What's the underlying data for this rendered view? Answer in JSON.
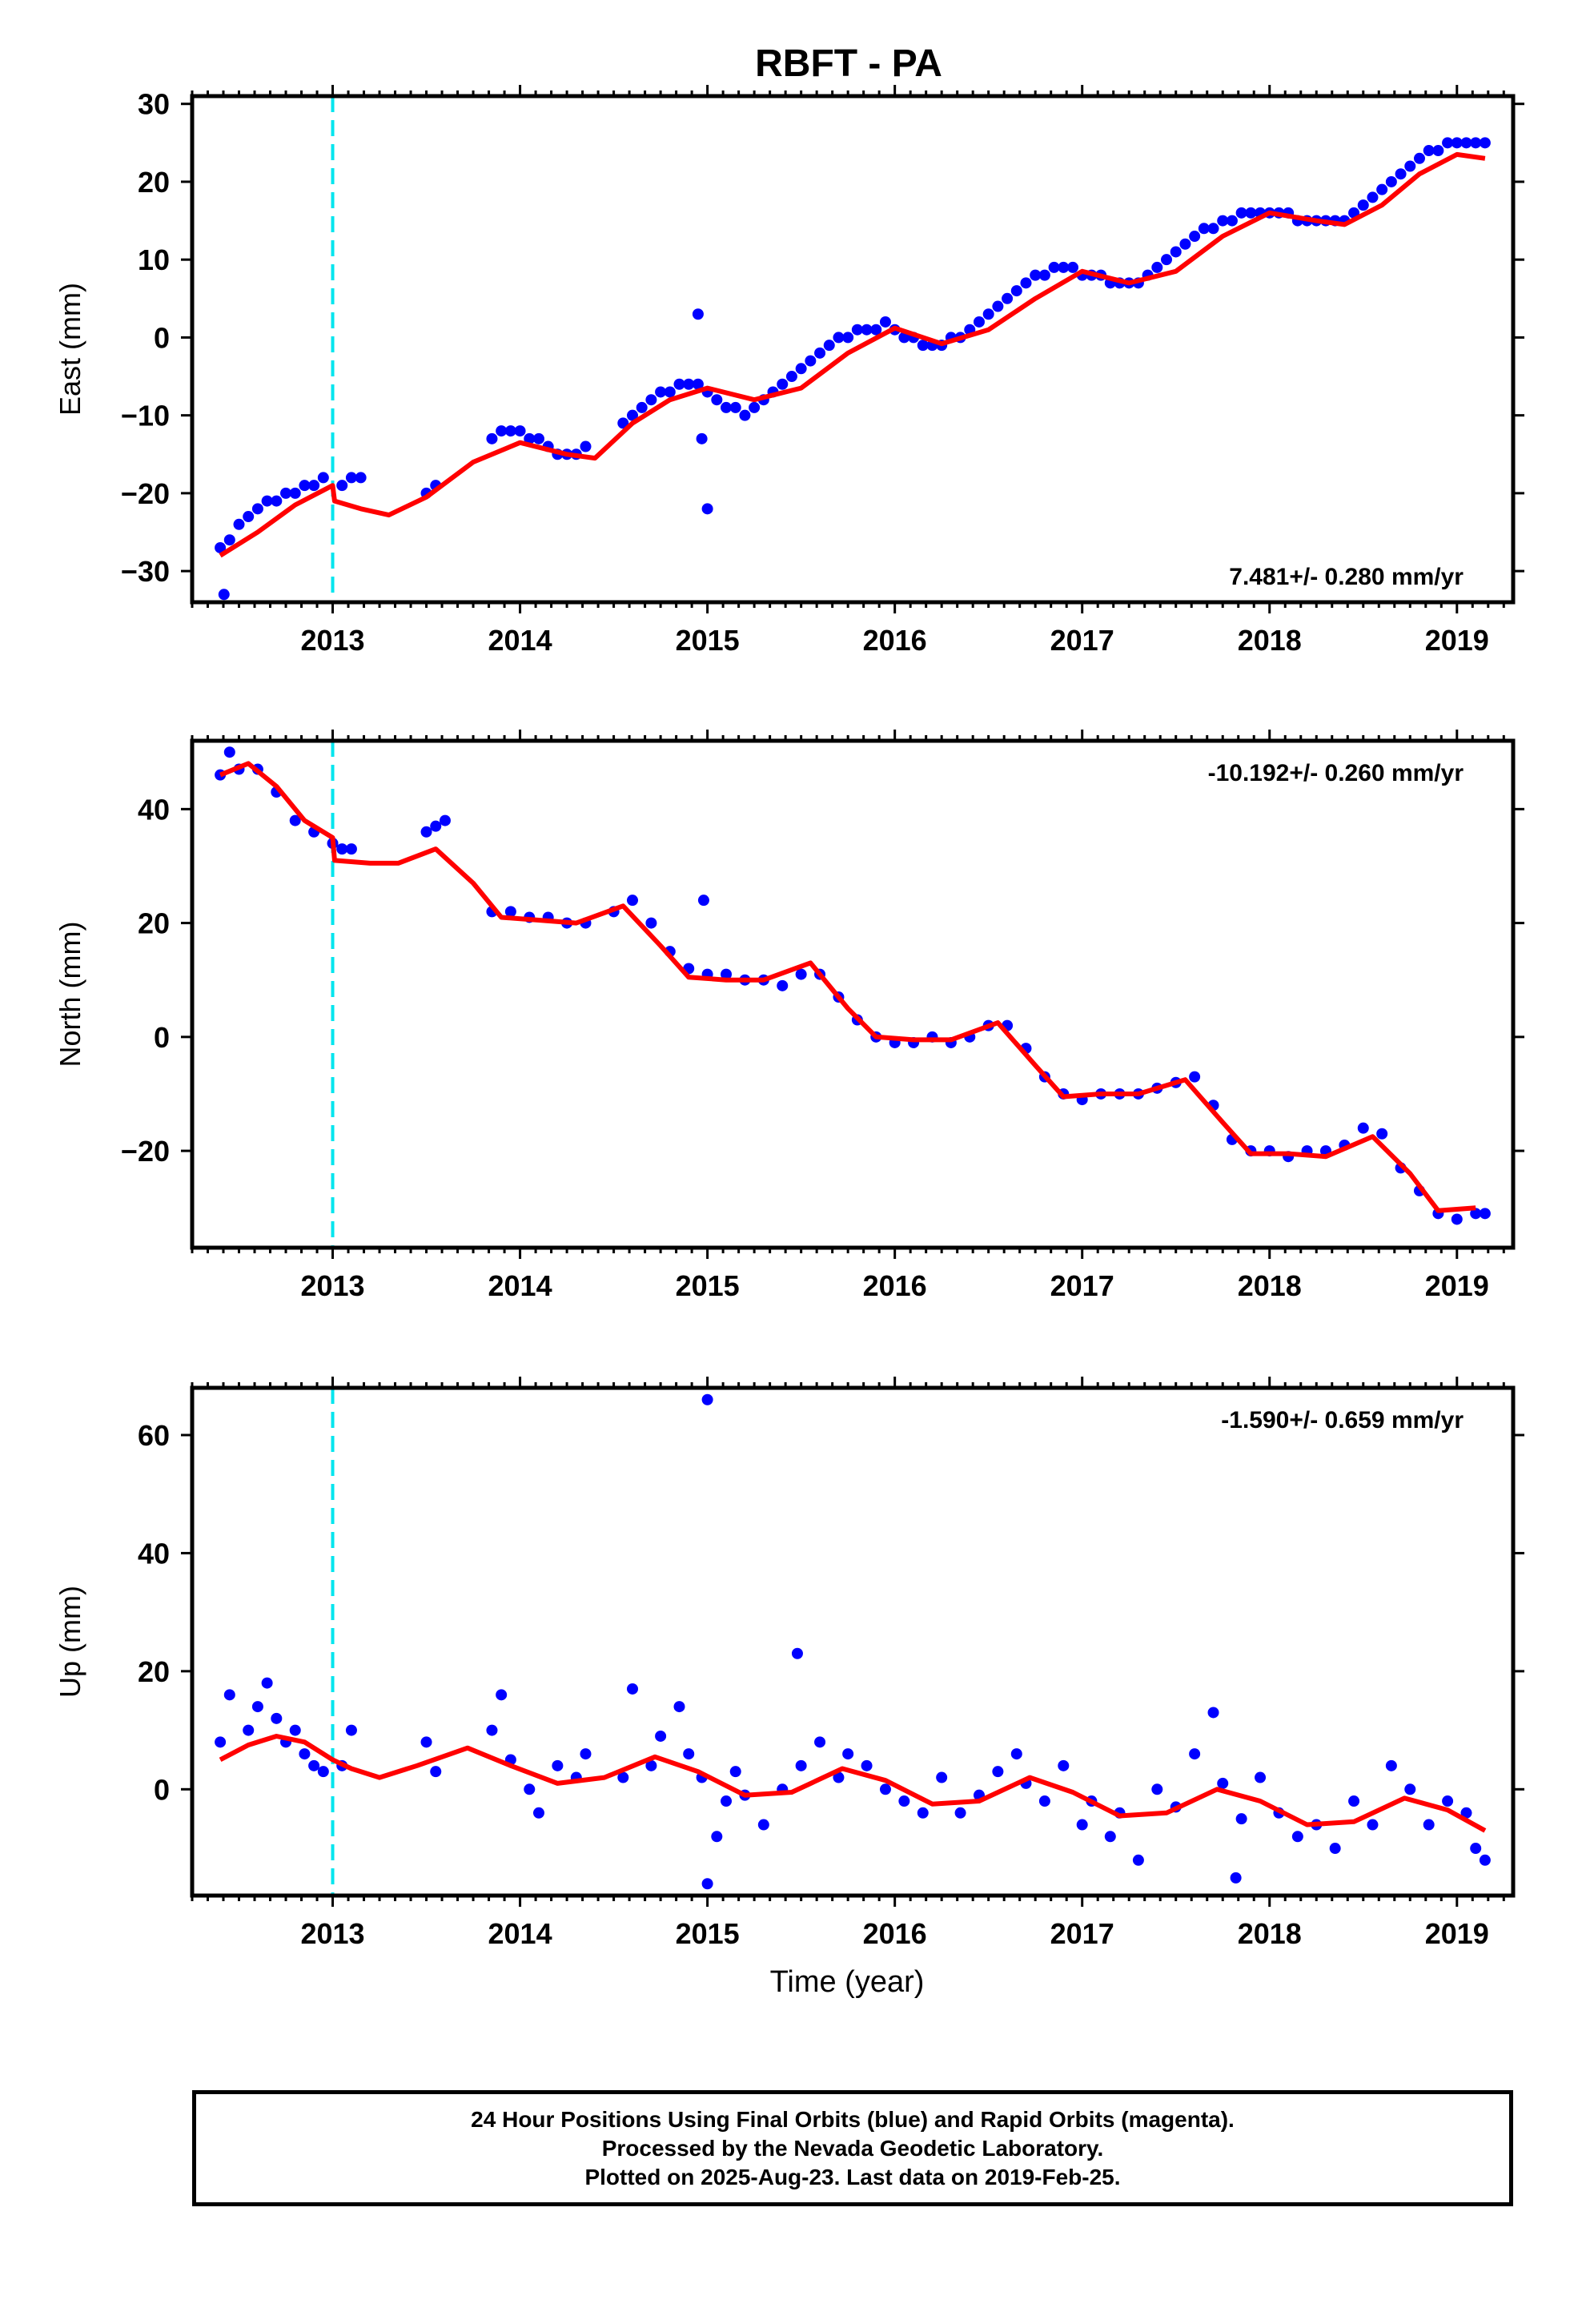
{
  "chart_data": {
    "type": "scatter",
    "title": "RBFT - PA",
    "xlabel": "Time (year)",
    "x_ticks": [
      "2013",
      "2014",
      "2015",
      "2016",
      "2017",
      "2018",
      "2019"
    ],
    "xlim": [
      2012.25,
      2019.3
    ],
    "event_line_x": 2013.0,
    "colors": {
      "points": "#0000ff",
      "model": "#ff0000",
      "event_line": "#00e5ee",
      "axes": "#000000"
    },
    "panels": [
      {
        "name": "east",
        "ylabel": "East (mm)",
        "ylim": [
          -34,
          31
        ],
        "y_ticks": [
          -30,
          -20,
          -10,
          0,
          10,
          20,
          30
        ],
        "rate_label": "7.481+/- 0.280 mm/yr",
        "rate_position": "bottom-right",
        "model_x": [
          2012.4,
          2012.6,
          2012.8,
          2013.0,
          2013.01,
          2013.15,
          2013.3,
          2013.5,
          2013.75,
          2014.0,
          2014.25,
          2014.4,
          2014.6,
          2014.8,
          2015.0,
          2015.25,
          2015.5,
          2015.75,
          2016.0,
          2016.25,
          2016.5,
          2016.75,
          2017.0,
          2017.25,
          2017.5,
          2017.75,
          2018.0,
          2018.25,
          2018.4,
          2018.6,
          2018.8,
          2019.0,
          2019.15
        ],
        "model_y": [
          -28,
          -25,
          -21.5,
          -19,
          -21,
          -22,
          -22.8,
          -20.5,
          -16,
          -13.5,
          -15,
          -15.5,
          -11,
          -8,
          -6.5,
          -8,
          -6.5,
          -2,
          1.2,
          -0.8,
          1,
          5,
          8.5,
          7,
          8.5,
          13,
          16,
          15,
          14.5,
          17,
          21,
          23.5,
          23
        ],
        "points_x": [
          2012.4,
          2012.45,
          2012.5,
          2012.55,
          2012.6,
          2012.65,
          2012.7,
          2012.75,
          2012.8,
          2012.85,
          2012.9,
          2012.95,
          2013.05,
          2013.1,
          2013.15,
          2013.5,
          2013.55,
          2013.85,
          2013.9,
          2013.95,
          2014.0,
          2014.05,
          2014.1,
          2014.15,
          2014.2,
          2014.25,
          2014.3,
          2014.35,
          2014.55,
          2014.6,
          2014.65,
          2014.7,
          2014.75,
          2014.8,
          2014.85,
          2014.9,
          2014.95,
          2015.0,
          2015.05,
          2015.1,
          2015.15,
          2015.2,
          2015.25,
          2015.3,
          2015.35,
          2015.4,
          2015.45,
          2015.5,
          2015.55,
          2015.6,
          2015.65,
          2015.7,
          2015.75,
          2015.8,
          2015.85,
          2015.9,
          2015.95,
          2016.0,
          2016.05,
          2016.1,
          2016.15,
          2016.2,
          2016.25,
          2016.3,
          2016.35,
          2016.4,
          2016.45,
          2016.5,
          2016.55,
          2016.6,
          2016.65,
          2016.7,
          2016.75,
          2016.8,
          2016.85,
          2016.9,
          2016.95,
          2017.0,
          2017.05,
          2017.1,
          2017.15,
          2017.2,
          2017.25,
          2017.3,
          2017.35,
          2017.4,
          2017.45,
          2017.5,
          2017.55,
          2017.6,
          2017.65,
          2017.7,
          2017.75,
          2017.8,
          2017.85,
          2017.9,
          2017.95,
          2018.0,
          2018.05,
          2018.1,
          2018.15,
          2018.2,
          2018.25,
          2018.3,
          2018.35,
          2018.4,
          2018.45,
          2018.5,
          2018.55,
          2018.6,
          2018.65,
          2018.7,
          2018.75,
          2018.8,
          2018.85,
          2018.9,
          2018.95,
          2019.0,
          2019.05,
          2019.1,
          2019.15,
          2014.95,
          2014.97,
          2015.0,
          2012.42
        ],
        "points_y": [
          -27,
          -26,
          -24,
          -23,
          -22,
          -21,
          -21,
          -20,
          -20,
          -19,
          -19,
          -18,
          -19,
          -18,
          -18,
          -20,
          -19,
          -13,
          -12,
          -12,
          -12,
          -13,
          -13,
          -14,
          -15,
          -15,
          -15,
          -14,
          -11,
          -10,
          -9,
          -8,
          -7,
          -7,
          -6,
          -6,
          -6,
          -7,
          -8,
          -9,
          -9,
          -10,
          -9,
          -8,
          -7,
          -6,
          -5,
          -4,
          -3,
          -2,
          -1,
          0,
          0,
          1,
          1,
          1,
          2,
          1,
          0,
          0,
          -1,
          -1,
          -1,
          0,
          0,
          1,
          2,
          3,
          4,
          5,
          6,
          7,
          8,
          8,
          9,
          9,
          9,
          8,
          8,
          8,
          7,
          7,
          7,
          7,
          8,
          9,
          10,
          11,
          12,
          13,
          14,
          14,
          15,
          15,
          16,
          16,
          16,
          16,
          16,
          16,
          15,
          15,
          15,
          15,
          15,
          15,
          16,
          17,
          18,
          19,
          20,
          21,
          22,
          23,
          24,
          24,
          25,
          25,
          25,
          25,
          25,
          3,
          -13,
          -22,
          -33
        ]
      },
      {
        "name": "north",
        "ylabel": "North (mm)",
        "ylim": [
          -37,
          52
        ],
        "y_ticks": [
          -20,
          0,
          20,
          40
        ],
        "rate_label": "-10.192+/- 0.260 mm/yr",
        "rate_position": "top-right",
        "model_x": [
          2012.4,
          2012.55,
          2012.7,
          2012.85,
          2013.0,
          2013.01,
          2013.2,
          2013.35,
          2013.55,
          2013.75,
          2013.9,
          2014.1,
          2014.3,
          2014.55,
          2014.75,
          2014.9,
          2015.1,
          2015.3,
          2015.55,
          2015.75,
          2015.9,
          2016.1,
          2016.3,
          2016.55,
          2016.75,
          2016.9,
          2017.1,
          2017.3,
          2017.55,
          2017.75,
          2017.9,
          2018.1,
          2018.3,
          2018.55,
          2018.75,
          2018.9,
          2019.1
        ],
        "model_y": [
          46,
          48,
          44,
          38,
          35,
          31,
          30.5,
          30.5,
          33,
          27,
          21,
          20.5,
          20,
          23,
          16,
          10.5,
          10,
          10,
          13,
          5,
          0,
          -0.5,
          -0.5,
          2.5,
          -5,
          -10.5,
          -10,
          -10,
          -7.5,
          -15,
          -20.5,
          -20.5,
          -21,
          -17.5,
          -24,
          -30.5,
          -30
        ],
        "points_x": [
          2012.4,
          2012.5,
          2012.6,
          2012.7,
          2012.8,
          2012.9,
          2013.0,
          2013.05,
          2013.1,
          2013.5,
          2013.55,
          2013.6,
          2013.85,
          2013.95,
          2014.05,
          2014.15,
          2014.25,
          2014.35,
          2014.5,
          2014.6,
          2014.7,
          2014.8,
          2014.9,
          2015.0,
          2015.1,
          2015.2,
          2015.3,
          2015.4,
          2015.5,
          2015.6,
          2015.7,
          2015.8,
          2015.9,
          2016.0,
          2016.1,
          2016.2,
          2016.3,
          2016.4,
          2016.5,
          2016.6,
          2016.7,
          2016.8,
          2016.9,
          2017.0,
          2017.1,
          2017.2,
          2017.3,
          2017.4,
          2017.5,
          2017.6,
          2017.7,
          2017.8,
          2017.9,
          2018.0,
          2018.1,
          2018.2,
          2018.3,
          2018.4,
          2018.5,
          2018.6,
          2018.7,
          2018.8,
          2018.9,
          2019.0,
          2019.1,
          2019.15,
          2014.98,
          2012.45
        ],
        "points_y": [
          46,
          47,
          47,
          43,
          38,
          36,
          34,
          33,
          33,
          36,
          37,
          38,
          22,
          22,
          21,
          21,
          20,
          20,
          22,
          24,
          20,
          15,
          12,
          11,
          11,
          10,
          10,
          9,
          11,
          11,
          7,
          3,
          0,
          -1,
          -1,
          0,
          -1,
          0,
          2,
          2,
          -2,
          -7,
          -10,
          -11,
          -10,
          -10,
          -10,
          -9,
          -8,
          -7,
          -12,
          -18,
          -20,
          -20,
          -21,
          -20,
          -20,
          -19,
          -16,
          -17,
          -23,
          -27,
          -31,
          -32,
          -31,
          -31,
          24,
          50
        ]
      },
      {
        "name": "up",
        "ylabel": "Up (mm)",
        "ylim": [
          -18,
          68
        ],
        "y_ticks": [
          0,
          20,
          40,
          60
        ],
        "rate_label": "-1.590+/- 0.659 mm/yr",
        "rate_position": "top-right",
        "model_x": [
          2012.4,
          2012.55,
          2012.7,
          2012.85,
          2013.0,
          2013.1,
          2013.25,
          2013.45,
          2013.72,
          2013.95,
          2014.2,
          2014.45,
          2014.72,
          2014.95,
          2015.2,
          2015.45,
          2015.72,
          2015.95,
          2016.2,
          2016.45,
          2016.72,
          2016.95,
          2017.2,
          2017.45,
          2017.72,
          2017.95,
          2018.2,
          2018.45,
          2018.72,
          2018.95,
          2019.15
        ],
        "model_y": [
          5,
          7.5,
          9,
          8,
          5,
          3.5,
          2,
          4,
          7,
          4,
          1,
          2,
          5.5,
          3,
          -1,
          -0.5,
          3.5,
          1.5,
          -2.5,
          -2,
          2,
          -0.5,
          -4.5,
          -4,
          0,
          -2,
          -6,
          -5.5,
          -1.5,
          -3.5,
          -7
        ],
        "points_x": [
          2012.4,
          2012.45,
          2012.55,
          2012.6,
          2012.65,
          2012.7,
          2012.75,
          2012.8,
          2012.85,
          2012.9,
          2012.95,
          2013.05,
          2013.1,
          2013.5,
          2013.55,
          2013.85,
          2013.9,
          2013.95,
          2014.05,
          2014.1,
          2014.2,
          2014.3,
          2014.35,
          2014.55,
          2014.6,
          2014.7,
          2014.75,
          2014.85,
          2014.9,
          2014.97,
          2015.05,
          2015.1,
          2015.15,
          2015.2,
          2015.3,
          2015.4,
          2015.5,
          2015.6,
          2015.7,
          2015.75,
          2015.85,
          2015.95,
          2016.05,
          2016.15,
          2016.25,
          2016.35,
          2016.45,
          2016.55,
          2016.65,
          2016.7,
          2016.8,
          2016.9,
          2017.0,
          2017.05,
          2017.15,
          2017.2,
          2017.3,
          2017.4,
          2017.5,
          2017.6,
          2017.7,
          2017.75,
          2017.85,
          2017.95,
          2018.05,
          2018.15,
          2018.25,
          2018.35,
          2018.45,
          2018.55,
          2018.65,
          2018.75,
          2018.85,
          2018.95,
          2019.05,
          2019.1,
          2019.15,
          2015.0,
          2015.48,
          2015.0,
          2017.82
        ],
        "points_y": [
          8,
          16,
          10,
          14,
          18,
          12,
          8,
          10,
          6,
          4,
          3,
          4,
          10,
          8,
          3,
          10,
          16,
          5,
          0,
          -4,
          4,
          2,
          6,
          2,
          17,
          4,
          9,
          14,
          6,
          2,
          -8,
          -2,
          3,
          -1,
          -6,
          0,
          4,
          8,
          2,
          6,
          4,
          0,
          -2,
          -4,
          2,
          -4,
          -1,
          3,
          6,
          1,
          -2,
          4,
          -6,
          -2,
          -8,
          -4,
          -12,
          0,
          -3,
          6,
          13,
          1,
          -5,
          2,
          -4,
          -8,
          -6,
          -10,
          -2,
          -6,
          4,
          0,
          -6,
          -2,
          -4,
          -10,
          -12,
          -16,
          23,
          66,
          -15
        ]
      }
    ],
    "footer_lines": [
      "24 Hour Positions Using Final Orbits (blue) and Rapid Orbits (magenta).",
      "Processed by the Nevada Geodetic Laboratory.",
      "Plotted on 2025-Aug-23. Last data on 2019-Feb-25."
    ]
  }
}
